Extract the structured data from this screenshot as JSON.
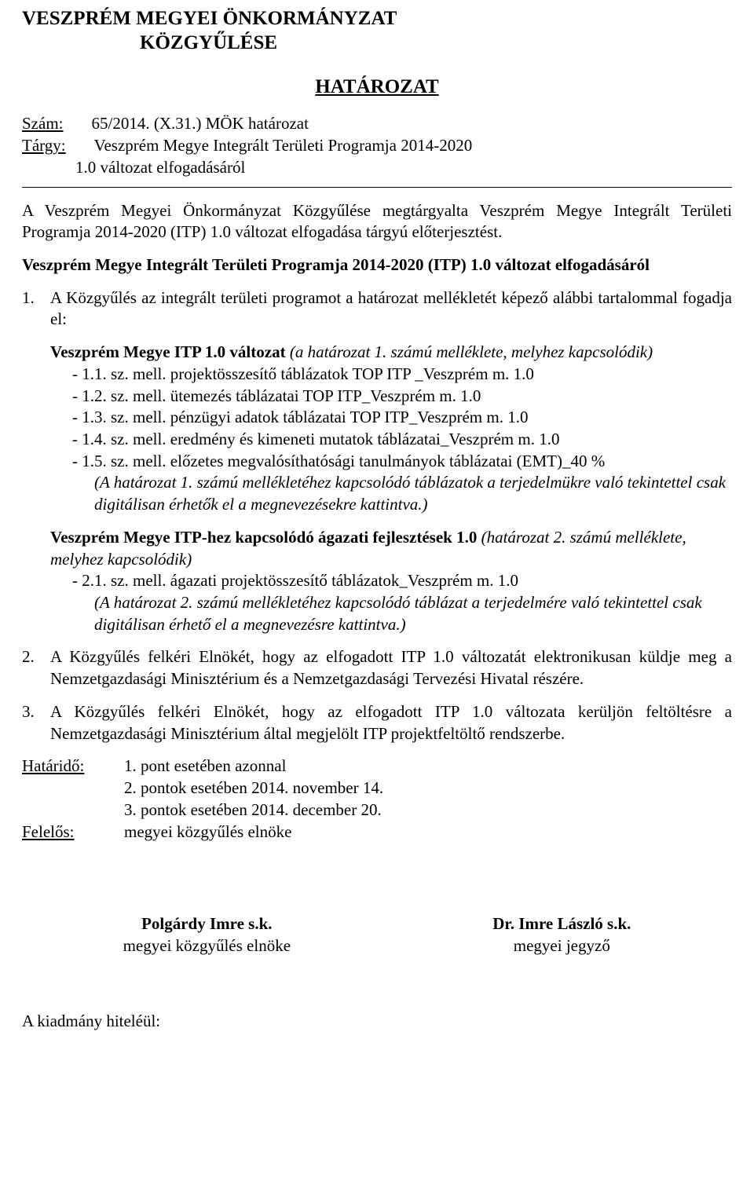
{
  "org": {
    "line1": "VESZPRÉM MEGYEI ÖNKORMÁNYZAT",
    "line2": "KÖZGYŰLÉSE"
  },
  "heading": "HATÁROZAT",
  "meta": {
    "szam_label": "Szám:",
    "szam_value": "65/2014. (X.31.) MÖK határozat",
    "targy_label": "Tárgy:",
    "targy_value": "Veszprém Megye Integrált Területi Programja 2014-2020",
    "targy_sub": "1.0 változat elfogadásáról"
  },
  "intro": "A Veszprém Megyei Önkormányzat Közgyűlése megtárgyalta Veszprém Megye Integrált Területi Programja 2014-2020 (ITP) 1.0 változat elfogadása tárgyú előterjesztést.",
  "subject_bold": "Veszprém Megye Integrált Területi Programja 2014-2020 (ITP) 1.0 változat elfogadásáról",
  "item1": {
    "num": "1.",
    "text": "A Közgyűlés az integrált területi programot a határozat mellékletét képező alábbi tartalommal fogadja el:"
  },
  "block1": {
    "title_bold": "Veszprém Megye ITP 1.0 változat",
    "title_italic": " (a határozat 1. számú melléklete, melyhez kapcsolódik)",
    "items": [
      "- 1.1. sz. mell. projektösszesítő táblázatok TOP ITP _Veszprém m. 1.0",
      "- 1.2. sz. mell. ütemezés táblázatai TOP ITP_Veszprém m. 1.0",
      "- 1.3. sz. mell. pénzügyi adatok táblázatai TOP ITP_Veszprém m. 1.0",
      "- 1.4. sz. mell. eredmény és kimeneti mutatok táblázatai_Veszprém m. 1.0",
      "- 1.5. sz. mell. előzetes megvalósíthatósági tanulmányok táblázatai (EMT)_40 %"
    ],
    "note": "(A határozat 1. számú mellékletéhez kapcsolódó táblázatok a terjedelmükre való tekintettel csak digitálisan érhetők el a megnevezésekre kattintva.)"
  },
  "block2": {
    "title_bold": "Veszprém Megye ITP-hez kapcsolódó ágazati fejlesztések 1.0",
    "title_italic": " (határozat 2. számú melléklete, melyhez kapcsolódik)",
    "items": [
      "- 2.1. sz. mell. ágazati projektösszesítő táblázatok_Veszprém m. 1.0"
    ],
    "note": "(A határozat 2. számú mellékletéhez kapcsolódó táblázat a terjedelmére való tekintettel csak digitálisan érhető el a megnevezésre kattintva.)"
  },
  "item2": {
    "num": "2.",
    "text": "A Közgyűlés felkéri Elnökét, hogy az elfogadott ITP 1.0 változatát elektronikusan küldje meg a Nemzetgazdasági Minisztérium és a Nemzetgazdasági Tervezési Hivatal részére."
  },
  "item3": {
    "num": "3.",
    "text": "A Közgyűlés felkéri Elnökét, hogy az elfogadott ITP 1.0 változata kerüljön feltöltésre a Nemzetgazdasági Minisztérium által megjelölt ITP projektfeltöltő rendszerbe."
  },
  "deadline": {
    "label": "Határidő:",
    "lines": [
      "1. pont esetében azonnal",
      "2. pontok esetében 2014. november 14.",
      "3. pontok esetében 2014. december 20."
    ]
  },
  "responsible": {
    "label": "Felelős:",
    "value": "megyei közgyűlés elnöke"
  },
  "sign": {
    "left_name": "Polgárdy Imre s.k.",
    "left_role": "megyei közgyűlés elnöke",
    "right_name": "Dr. Imre László s.k.",
    "right_role": "megyei jegyző"
  },
  "closing": "A kiadmány hiteléül:"
}
